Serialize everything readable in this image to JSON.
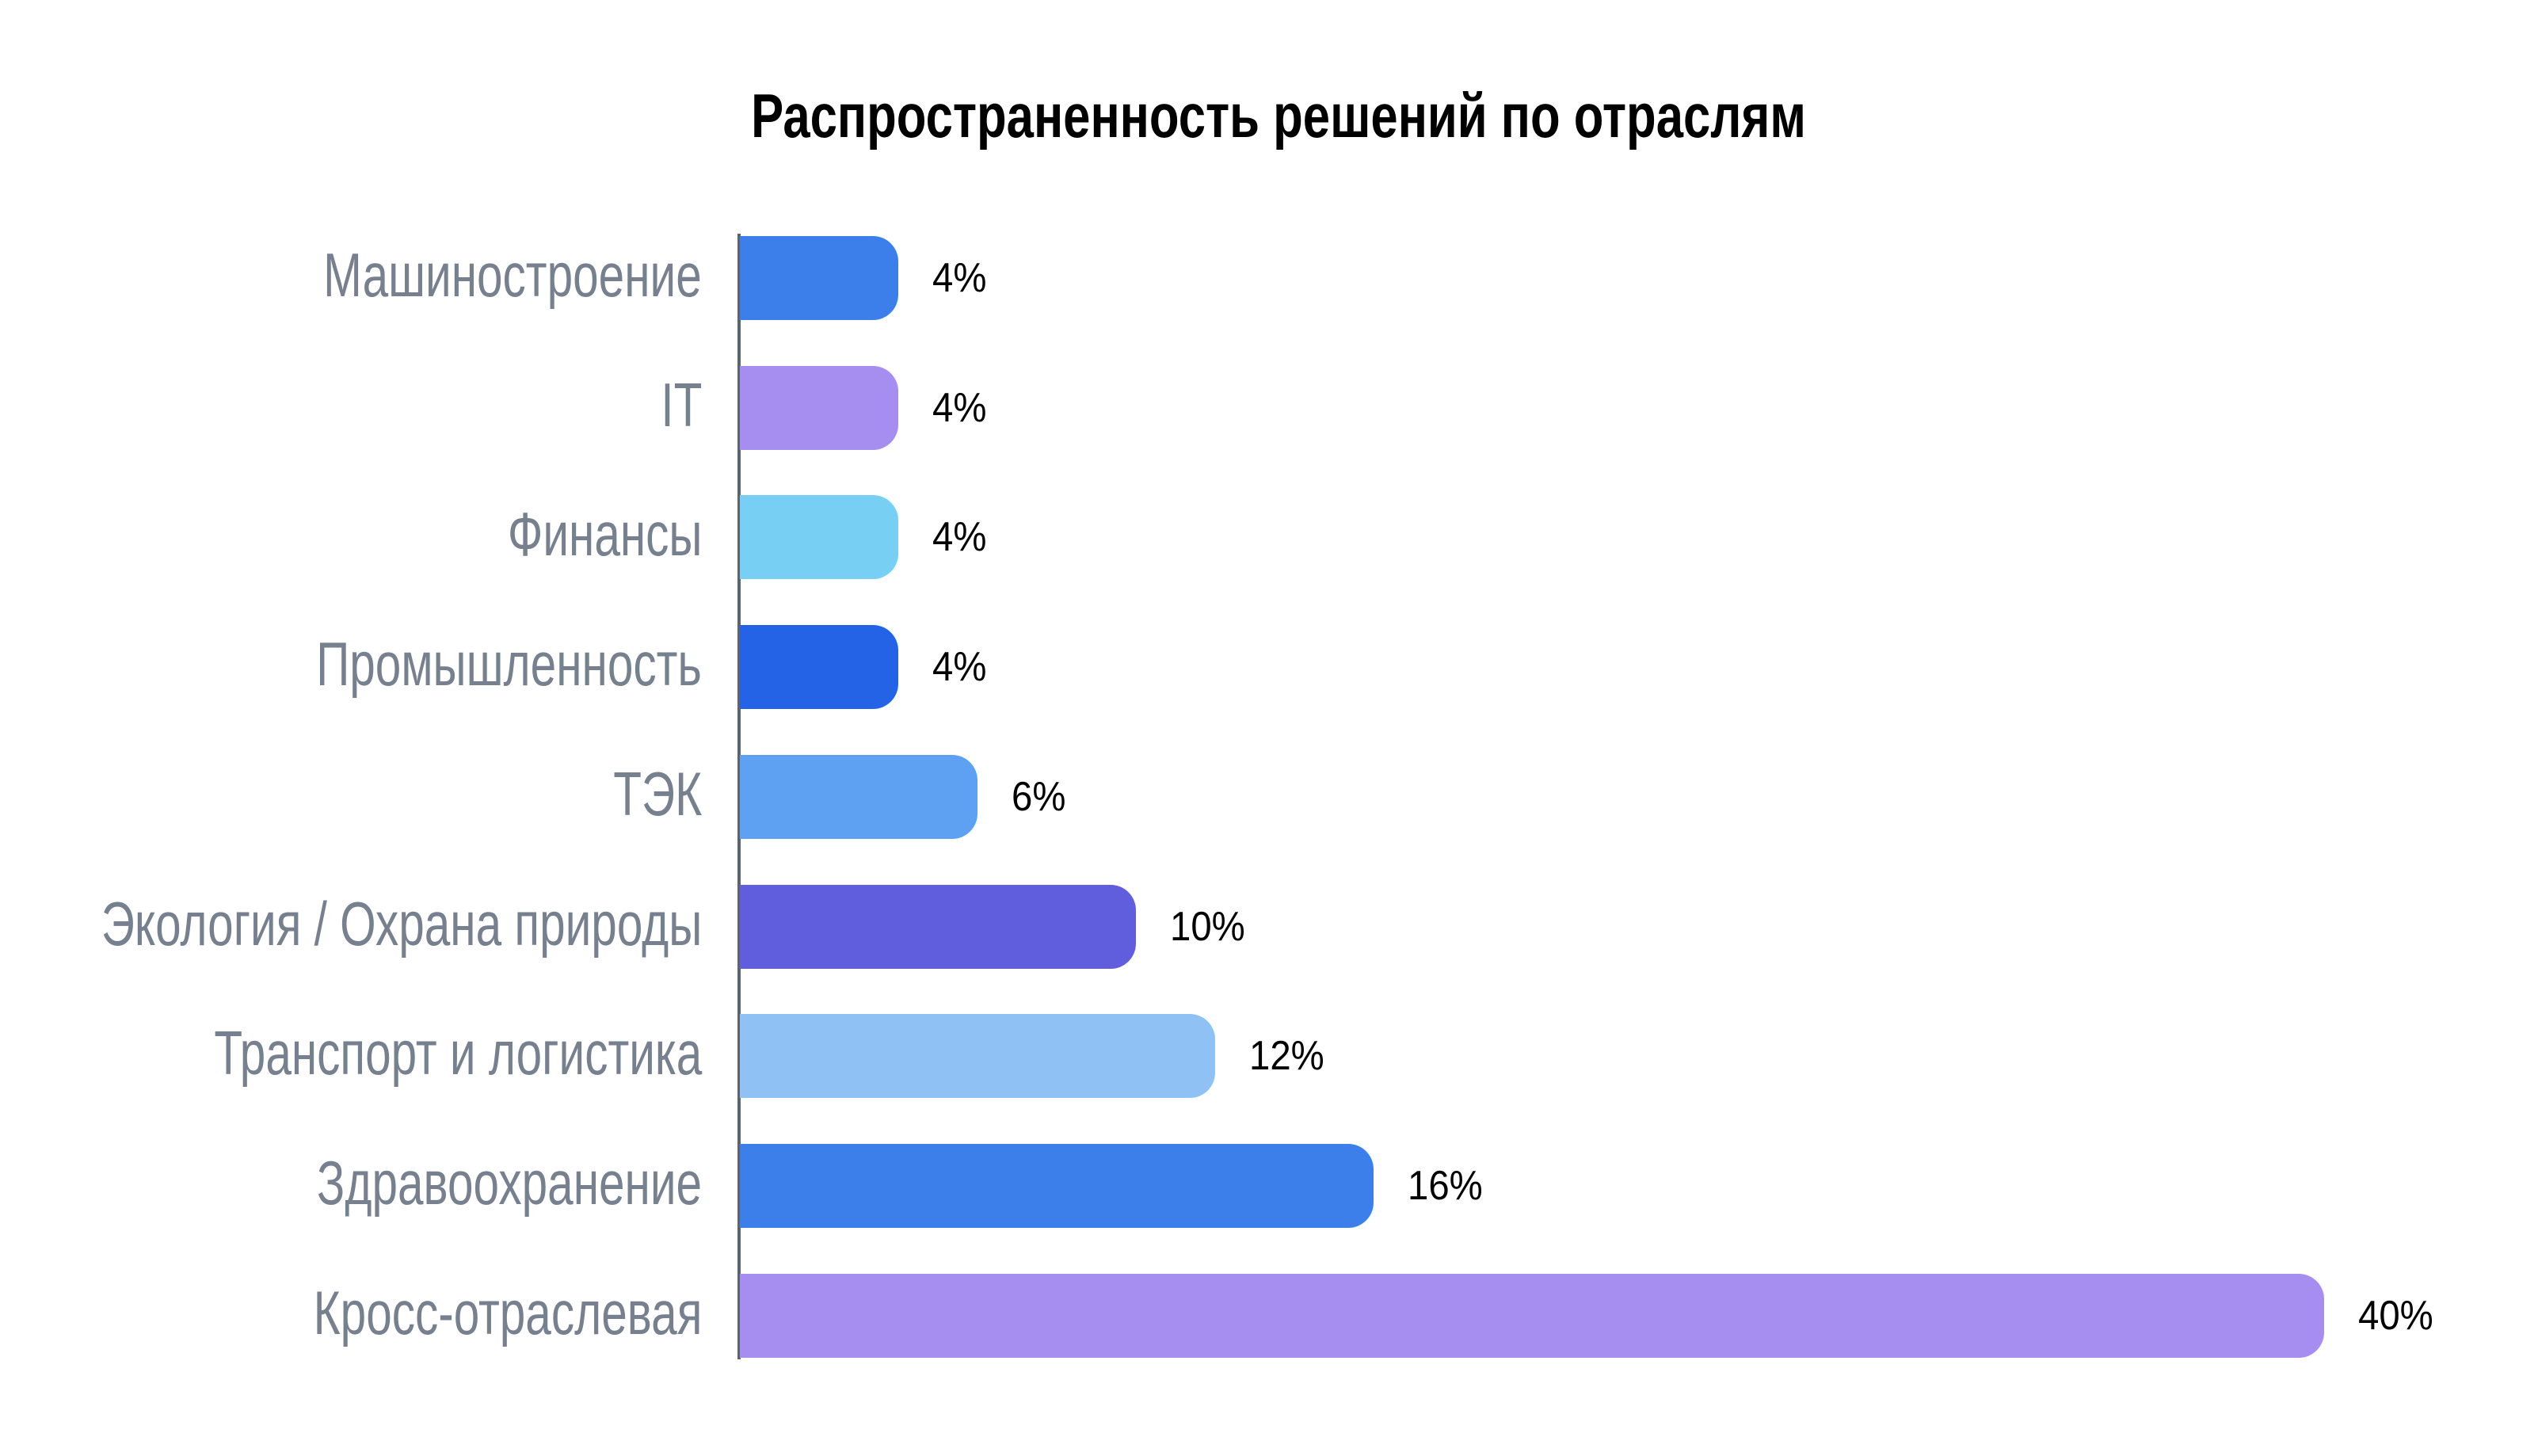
{
  "chart_data": {
    "type": "bar",
    "orientation": "horizontal",
    "title": "Распространенность решений по отраслям",
    "categories": [
      "Машиностроение",
      "IT",
      "Финансы",
      "Промышленность",
      "ТЭК",
      "Экология / Охрана природы",
      "Транспорт и логистика",
      "Здравоохранение",
      "Кросс-отраслевая"
    ],
    "values": [
      4,
      4,
      4,
      4,
      6,
      10,
      12,
      16,
      40
    ],
    "value_labels": [
      "4%",
      "4%",
      "4%",
      "4%",
      "6%",
      "10%",
      "12%",
      "16%",
      "40%"
    ],
    "bar_colors": [
      "#3c7fea",
      "#a68df0",
      "#77cff4",
      "#2563e6",
      "#5ea0f2",
      "#615ede",
      "#90c1f4",
      "#3c7fea",
      "#a68df0"
    ],
    "xlim": [
      0,
      45
    ],
    "grid": false,
    "legend": false,
    "background_color": "#ffffff",
    "title_color": "#000000",
    "category_label_color": "#76808f",
    "value_label_color": "#000000",
    "axis_line_color": "#5c6470"
  }
}
